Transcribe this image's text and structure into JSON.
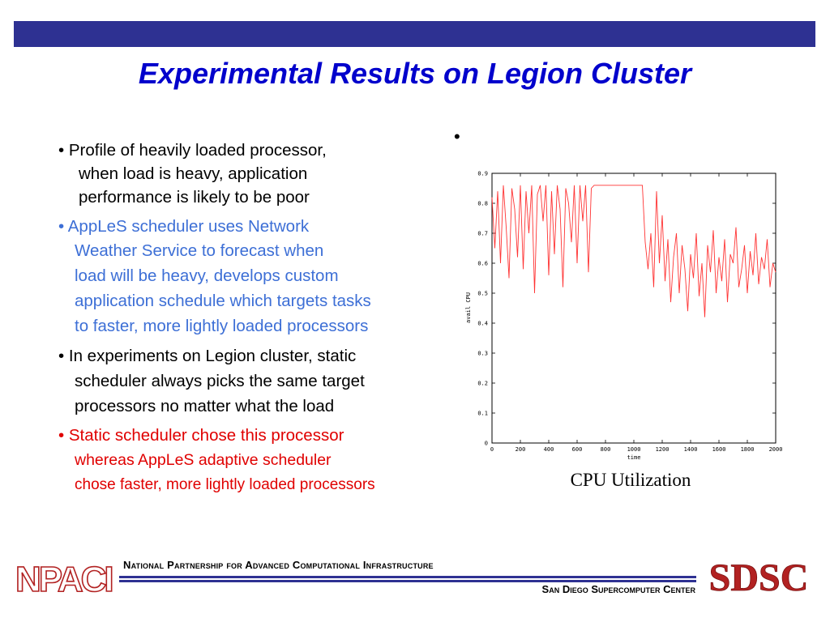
{
  "slide": {
    "title": "Experimental Results on Legion Cluster",
    "stray_bullet": "•",
    "bullets": [
      {
        "color": "#000000",
        "lines": [
          "•  Profile of heavily loaded processor,",
          "when load is heavy, application",
          "performance is likely to be poor"
        ]
      },
      {
        "color": "#3d6fd6",
        "lines": [
          "•  AppLeS scheduler uses Network",
          "Weather Service to forecast when",
          "load will be heavy, develops custom",
          "application schedule which targets tasks",
          "to faster, more lightly loaded processors"
        ]
      },
      {
        "color": "#000000",
        "lines": [
          "•  In experiments on Legion cluster, static",
          "scheduler always picks the same target",
          "processors no matter what the load"
        ]
      },
      {
        "color": "#e00000",
        "lines": [
          "• Static scheduler chose this processor",
          "whereas AppLeS adaptive scheduler",
          "chose faster, more lightly loaded processors"
        ]
      }
    ],
    "caption": "CPU Utilization"
  },
  "footer": {
    "top_text": "National Partnership for Advanced Computational Infrastructure",
    "bottom_text": "San Diego Supercomputer Center",
    "left_logo_text": "NPACI",
    "right_logo_text": "SDSC",
    "bar_color": "#2e3192",
    "logo_red": "#b22222"
  },
  "chart_data": {
    "type": "line",
    "xlabel": "time",
    "ylabel": "avail CPU",
    "xlim": [
      0,
      2000
    ],
    "ylim": [
      0,
      0.9
    ],
    "x_ticks": [
      "0",
      "200",
      "400",
      "600",
      "800",
      "1000",
      "1200",
      "1400",
      "1600",
      "1800",
      "2000"
    ],
    "y_ticks": [
      "0",
      "0.1",
      "0.2",
      "0.3",
      "0.4",
      "0.5",
      "0.6",
      "0.7",
      "0.8",
      "0.9"
    ],
    "line_color": "#ff3333",
    "series": [
      {
        "x": [
          0,
          20,
          40,
          60,
          80,
          100,
          120,
          140,
          160,
          180,
          200,
          220,
          240,
          260,
          280,
          300,
          320,
          340,
          360,
          380,
          400,
          420,
          440,
          460,
          480,
          500,
          520,
          540,
          560,
          580,
          600,
          620,
          640,
          660,
          680,
          700,
          720,
          740,
          760,
          780,
          800,
          820,
          840,
          860,
          880,
          900,
          920,
          940,
          960,
          980,
          1000,
          1020,
          1040,
          1060,
          1080,
          1100,
          1120,
          1140,
          1160,
          1180,
          1200,
          1220,
          1240,
          1260,
          1280,
          1300,
          1320,
          1340,
          1360,
          1380,
          1400,
          1420,
          1440,
          1460,
          1480,
          1500,
          1520,
          1540,
          1560,
          1580,
          1600,
          1620,
          1640,
          1660,
          1680,
          1700,
          1720,
          1740,
          1760,
          1780,
          1800,
          1820,
          1840,
          1860,
          1880,
          1900,
          1920,
          1940,
          1960,
          1980,
          2000
        ],
        "values": [
          0.82,
          0.65,
          0.84,
          0.6,
          0.86,
          0.72,
          0.55,
          0.85,
          0.78,
          0.62,
          0.86,
          0.58,
          0.84,
          0.7,
          0.86,
          0.5,
          0.83,
          0.86,
          0.74,
          0.86,
          0.56,
          0.84,
          0.63,
          0.86,
          0.78,
          0.52,
          0.85,
          0.8,
          0.67,
          0.86,
          0.6,
          0.86,
          0.74,
          0.86,
          0.57,
          0.85,
          0.86,
          0.86,
          0.86,
          0.86,
          0.86,
          0.86,
          0.86,
          0.86,
          0.86,
          0.86,
          0.86,
          0.86,
          0.86,
          0.86,
          0.86,
          0.86,
          0.86,
          0.86,
          0.67,
          0.58,
          0.7,
          0.52,
          0.84,
          0.6,
          0.76,
          0.54,
          0.68,
          0.47,
          0.62,
          0.7,
          0.5,
          0.66,
          0.58,
          0.44,
          0.63,
          0.55,
          0.7,
          0.49,
          0.6,
          0.42,
          0.66,
          0.57,
          0.71,
          0.5,
          0.62,
          0.54,
          0.68,
          0.47,
          0.63,
          0.6,
          0.72,
          0.52,
          0.58,
          0.66,
          0.5,
          0.64,
          0.56,
          0.7,
          0.53,
          0.62,
          0.58,
          0.68,
          0.52,
          0.6,
          0.57
        ]
      }
    ]
  }
}
